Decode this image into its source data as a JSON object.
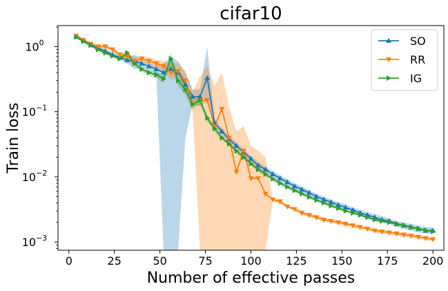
{
  "chart_data": {
    "type": "line",
    "title": "cifar10",
    "xlabel": "Number of effective passes",
    "ylabel": "Train loss",
    "xlim": [
      -6,
      206
    ],
    "ylim": [
      0.00075,
      2.1
    ],
    "yscale": "log",
    "grid": false,
    "legend_position": "top-right",
    "x_ticks": [
      0,
      25,
      50,
      75,
      100,
      125,
      150,
      175,
      200
    ],
    "y_ticks": [
      {
        "value": 1,
        "label": "10",
        "exp": "0"
      },
      {
        "value": 0.1,
        "label": "10",
        "exp": "−1"
      },
      {
        "value": 0.01,
        "label": "10",
        "exp": "−2"
      },
      {
        "value": 0.001,
        "label": "10",
        "exp": "−3"
      }
    ],
    "series": [
      {
        "name": "SO",
        "color": "#1f77b4",
        "marker": "triangle-up",
        "x": [
          4,
          8,
          12,
          16,
          20,
          24,
          28,
          32,
          36,
          40,
          44,
          48,
          52,
          56,
          60,
          64,
          68,
          72,
          76,
          80,
          84,
          88,
          92,
          96,
          100,
          104,
          108,
          112,
          116,
          120,
          124,
          128,
          132,
          136,
          140,
          144,
          148,
          152,
          156,
          160,
          164,
          168,
          172,
          176,
          180,
          184,
          188,
          192,
          196,
          200
        ],
        "values": [
          1.45,
          1.25,
          1.05,
          0.95,
          0.85,
          0.75,
          0.68,
          0.62,
          0.6,
          0.55,
          0.5,
          0.45,
          0.4,
          0.45,
          0.4,
          0.26,
          0.17,
          0.17,
          0.33,
          0.067,
          0.05,
          0.038,
          0.03,
          0.024,
          0.019,
          0.015,
          0.013,
          0.011,
          0.0095,
          0.0083,
          0.0072,
          0.0064,
          0.0057,
          0.005,
          0.0045,
          0.0041,
          0.0037,
          0.0034,
          0.0031,
          0.0028,
          0.0026,
          0.0024,
          0.0022,
          0.0021,
          0.0019,
          0.0018,
          0.0017,
          0.0016,
          0.0015,
          0.0015
        ],
        "band_lower": [
          1.35,
          1.15,
          0.97,
          0.88,
          0.78,
          0.69,
          0.62,
          0.55,
          0.45,
          0.48,
          0.44,
          0.39,
          0.0001,
          0.0001,
          0.0001,
          0.04,
          0.13,
          0.12,
          0.15,
          0.058,
          0.044,
          0.034,
          0.027,
          0.021,
          0.017,
          0.0135,
          0.0115,
          0.0098,
          0.0084,
          0.0073,
          0.0064,
          0.0057,
          0.0051,
          0.0045,
          0.0041,
          0.0037,
          0.0033,
          0.003,
          0.0028,
          0.0025,
          0.0023,
          0.0021,
          0.002,
          0.0019,
          0.0017,
          0.0016,
          0.0015,
          0.0014,
          0.00135,
          0.00135
        ],
        "band_upper": [
          1.55,
          1.35,
          1.13,
          1.02,
          0.92,
          0.82,
          0.75,
          0.7,
          0.75,
          0.62,
          0.56,
          0.51,
          0.55,
          0.7,
          0.6,
          0.4,
          0.22,
          0.22,
          1.0,
          0.078,
          0.057,
          0.043,
          0.034,
          0.027,
          0.021,
          0.017,
          0.0145,
          0.0123,
          0.0106,
          0.0093,
          0.008,
          0.0071,
          0.0063,
          0.0055,
          0.005,
          0.0045,
          0.0041,
          0.0038,
          0.0034,
          0.0031,
          0.0029,
          0.0027,
          0.0025,
          0.0023,
          0.0021,
          0.002,
          0.0019,
          0.0018,
          0.0017,
          0.0017
        ]
      },
      {
        "name": "RR",
        "color": "#ff7f0e",
        "marker": "triangle-down",
        "x": [
          4,
          8,
          12,
          16,
          20,
          24,
          28,
          32,
          36,
          40,
          44,
          48,
          52,
          56,
          60,
          64,
          68,
          72,
          76,
          80,
          84,
          88,
          92,
          96,
          100,
          104,
          108,
          112,
          116,
          120,
          124,
          128,
          132,
          136,
          140,
          144,
          148,
          152,
          156,
          160,
          164,
          168,
          172,
          176,
          180,
          184,
          188,
          192,
          196,
          200
        ],
        "values": [
          1.45,
          1.25,
          1.1,
          1.0,
          1.0,
          0.9,
          0.75,
          0.7,
          0.6,
          0.65,
          0.6,
          0.55,
          0.5,
          0.4,
          0.42,
          0.3,
          0.13,
          0.15,
          0.15,
          0.06,
          0.11,
          0.04,
          0.012,
          0.025,
          0.0095,
          0.0095,
          0.0055,
          0.0045,
          0.0042,
          0.0035,
          0.0032,
          0.0028,
          0.0026,
          0.0024,
          0.0022,
          0.0021,
          0.002,
          0.0019,
          0.0018,
          0.0017,
          0.0016,
          0.0015,
          0.00145,
          0.0014,
          0.00135,
          0.0013,
          0.00125,
          0.0012,
          0.00115,
          0.0011
        ],
        "band_lower": [
          1.38,
          1.18,
          1.04,
          0.94,
          0.93,
          0.84,
          0.69,
          0.6,
          0.52,
          0.58,
          0.53,
          0.47,
          0.42,
          0.31,
          0.33,
          0.2,
          0.1,
          0.0001,
          0.0001,
          0.0001,
          0.0001,
          0.0001,
          0.0001,
          0.0001,
          0.0001,
          0.0001,
          0.0001,
          0.0042,
          0.0039,
          0.0033,
          0.003,
          0.0026,
          0.0024,
          0.0022,
          0.00205,
          0.00195,
          0.00185,
          0.00175,
          0.00167,
          0.00158,
          0.00149,
          0.0014,
          0.00135,
          0.0013,
          0.00125,
          0.0012,
          0.00116,
          0.00112,
          0.00107,
          0.00102
        ],
        "band_upper": [
          1.52,
          1.32,
          1.16,
          1.07,
          1.08,
          0.97,
          0.82,
          0.8,
          0.7,
          0.73,
          0.68,
          0.63,
          0.6,
          0.55,
          0.55,
          0.42,
          0.2,
          0.35,
          0.5,
          0.25,
          0.4,
          0.12,
          0.05,
          0.06,
          0.03,
          0.025,
          0.02,
          0.0048,
          0.0045,
          0.0037,
          0.0034,
          0.003,
          0.0028,
          0.0026,
          0.0024,
          0.00225,
          0.00215,
          0.00205,
          0.00193,
          0.00182,
          0.00171,
          0.0016,
          0.00155,
          0.0015,
          0.00145,
          0.0014,
          0.00134,
          0.00128,
          0.00123,
          0.00118
        ]
      },
      {
        "name": "IG",
        "color": "#2ca02c",
        "marker": "triangle-right",
        "x": [
          4,
          8,
          12,
          16,
          20,
          24,
          28,
          32,
          36,
          40,
          44,
          48,
          52,
          56,
          60,
          64,
          68,
          72,
          76,
          80,
          84,
          88,
          92,
          96,
          100,
          104,
          108,
          112,
          116,
          120,
          124,
          128,
          132,
          136,
          140,
          144,
          148,
          152,
          156,
          160,
          164,
          168,
          172,
          176,
          180,
          184,
          188,
          192,
          196,
          200
        ],
        "values": [
          1.4,
          1.2,
          1.05,
          0.9,
          0.8,
          0.72,
          0.65,
          0.8,
          0.55,
          0.45,
          0.4,
          0.37,
          0.32,
          0.65,
          0.3,
          0.22,
          0.13,
          0.15,
          0.08,
          0.055,
          0.04,
          0.032,
          0.025,
          0.02,
          0.016,
          0.013,
          0.011,
          0.0093,
          0.008,
          0.007,
          0.0062,
          0.0055,
          0.0049,
          0.0044,
          0.004,
          0.0036,
          0.0033,
          0.003,
          0.0028,
          0.0026,
          0.0024,
          0.0022,
          0.0021,
          0.002,
          0.0019,
          0.0018,
          0.00168,
          0.0016,
          0.00152,
          0.00145
        ],
        "band_lower": [
          1.33,
          1.14,
          1.0,
          0.86,
          0.76,
          0.68,
          0.61,
          0.72,
          0.5,
          0.41,
          0.36,
          0.33,
          0.28,
          0.5,
          0.25,
          0.18,
          0.11,
          0.13,
          0.07,
          0.05,
          0.037,
          0.03,
          0.023,
          0.0185,
          0.0148,
          0.012,
          0.0102,
          0.0087,
          0.0075,
          0.0066,
          0.0058,
          0.0052,
          0.0046,
          0.0042,
          0.0038,
          0.0034,
          0.0031,
          0.0029,
          0.0027,
          0.0025,
          0.0023,
          0.0021,
          0.002,
          0.0019,
          0.0018,
          0.0017,
          0.0016,
          0.00153,
          0.00146,
          0.0014
        ],
        "band_upper": [
          1.47,
          1.26,
          1.1,
          0.94,
          0.84,
          0.76,
          0.69,
          0.88,
          0.6,
          0.49,
          0.44,
          0.41,
          0.36,
          0.8,
          0.35,
          0.26,
          0.15,
          0.17,
          0.09,
          0.06,
          0.043,
          0.034,
          0.027,
          0.0215,
          0.0172,
          0.014,
          0.0118,
          0.0099,
          0.0085,
          0.0074,
          0.0066,
          0.0058,
          0.0052,
          0.0046,
          0.0042,
          0.0038,
          0.0035,
          0.0031,
          0.0029,
          0.0027,
          0.0025,
          0.0023,
          0.0022,
          0.0021,
          0.002,
          0.0019,
          0.00176,
          0.00167,
          0.00158,
          0.0015
        ]
      }
    ]
  }
}
